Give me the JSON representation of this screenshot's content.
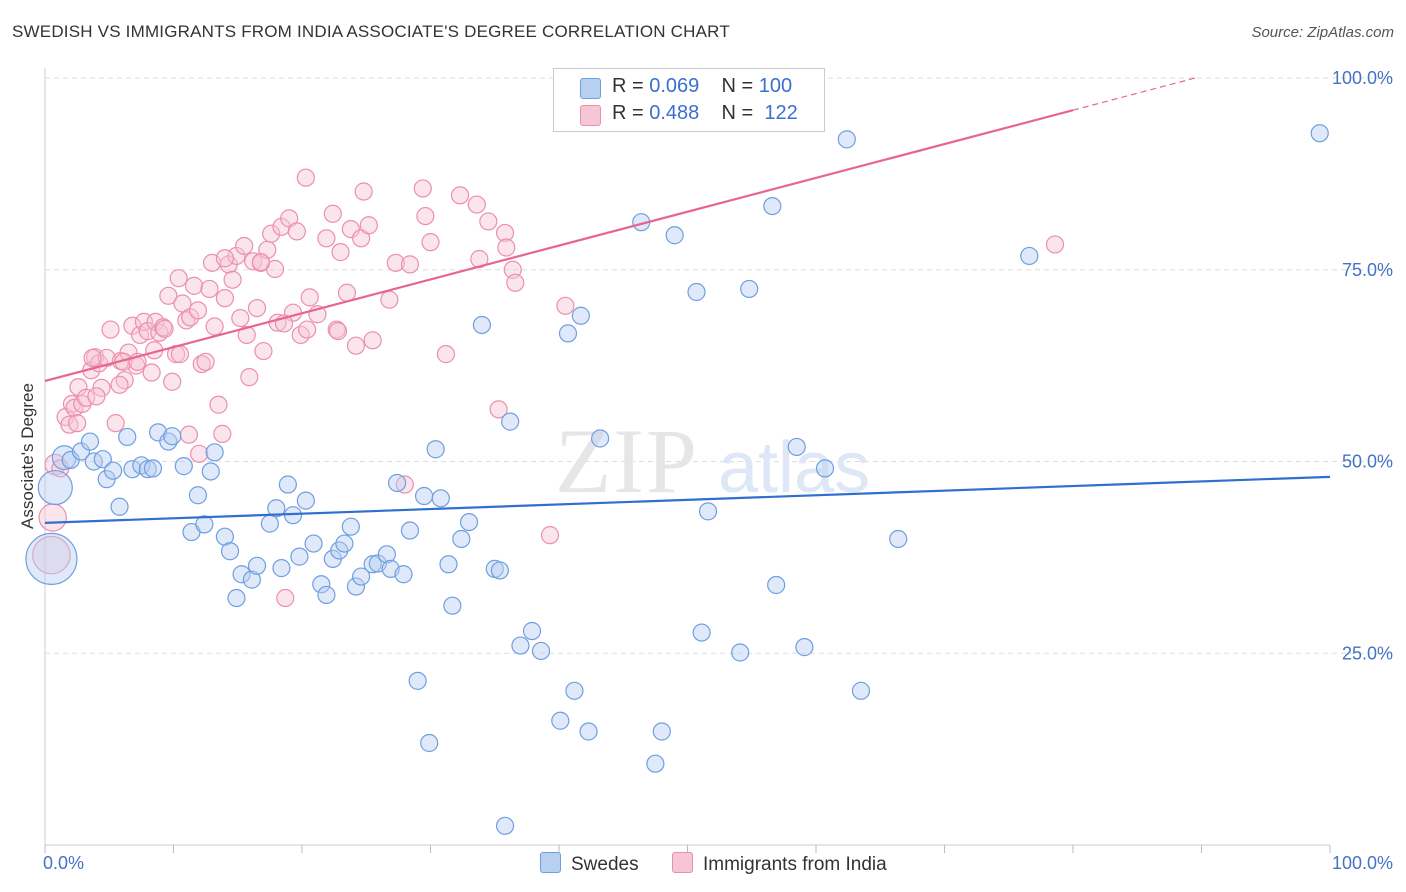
{
  "title": "SWEDISH VS IMMIGRANTS FROM INDIA ASSOCIATE'S DEGREE CORRELATION CHART",
  "source": "Source: ZipAtlas.com",
  "watermark": {
    "zip": "ZIP",
    "atlas": "atlas"
  },
  "colors": {
    "blue": "#6f9fe0",
    "blue_fill": "#b7cff1",
    "blue_line": "#2f6fce",
    "pink": "#ec8fad",
    "pink_fill": "#f6c6d5",
    "pink_line": "#e8658f",
    "grid": "#dddddd",
    "axis_text": "#4472c4"
  },
  "legend": {
    "rows": [
      {
        "r_label": "R = ",
        "r_value": "0.069",
        "n_label": "N = ",
        "n_value": "100",
        "color": "blue"
      },
      {
        "r_label": "R = ",
        "r_value": "0.488",
        "n_label": "N = ",
        "n_value": "122",
        "color": "pink"
      }
    ]
  },
  "bottom_legend": {
    "swedes": "Swedes",
    "india": "Immigrants from India"
  },
  "chart_data": {
    "type": "scatter",
    "title": "SWEDISH VS IMMIGRANTS FROM INDIA ASSOCIATE'S DEGREE CORRELATION CHART",
    "xlabel": "",
    "ylabel": "Associate's Degree",
    "xlim": [
      0,
      100
    ],
    "ylim": [
      0,
      100
    ],
    "x_tick_labels": [
      "0.0%",
      "100.0%"
    ],
    "y_tick_labels": [
      "25.0%",
      "50.0%",
      "75.0%",
      "100.0%"
    ],
    "y_ticks": [
      25,
      50,
      75,
      100
    ],
    "grid": true,
    "legend_position": "top-center",
    "series": [
      {
        "name": "Swedes",
        "color": "blue",
        "trend": {
          "x0": 0,
          "y0": 42.0,
          "x1": 100,
          "y1": 48.0
        },
        "points": [
          [
            0.5,
            37.3,
            3
          ],
          [
            0.8,
            46.6,
            2
          ],
          [
            1.5,
            50.5,
            1.4
          ],
          [
            2.0,
            50.2,
            1
          ],
          [
            2.8,
            51.3,
            1
          ],
          [
            3.5,
            52.6,
            1
          ],
          [
            3.8,
            50.0,
            1
          ],
          [
            4.5,
            50.3,
            1
          ],
          [
            4.8,
            47.7,
            1
          ],
          [
            5.3,
            48.8,
            1
          ],
          [
            5.8,
            44.1,
            1
          ],
          [
            6.4,
            53.2,
            1
          ],
          [
            6.8,
            49.0,
            1
          ],
          [
            7.5,
            49.5,
            1
          ],
          [
            8.0,
            49.0,
            1
          ],
          [
            8.4,
            49.1,
            1
          ],
          [
            8.8,
            53.8,
            1
          ],
          [
            9.6,
            52.6,
            1
          ],
          [
            9.9,
            53.3,
            1
          ],
          [
            10.8,
            49.4,
            1
          ],
          [
            11.4,
            40.8,
            1
          ],
          [
            11.9,
            45.6,
            1
          ],
          [
            12.4,
            41.8,
            1
          ],
          [
            12.9,
            48.7,
            1
          ],
          [
            13.2,
            51.2,
            1
          ],
          [
            14.0,
            40.2,
            1
          ],
          [
            14.4,
            38.3,
            1
          ],
          [
            14.9,
            32.2,
            1
          ],
          [
            15.3,
            35.3,
            1
          ],
          [
            16.1,
            34.6,
            1
          ],
          [
            16.5,
            36.4,
            1
          ],
          [
            17.5,
            41.9,
            1
          ],
          [
            18.0,
            43.9,
            1
          ],
          [
            18.4,
            36.1,
            1
          ],
          [
            18.9,
            47.0,
            1
          ],
          [
            19.3,
            43.0,
            1
          ],
          [
            19.8,
            37.6,
            1
          ],
          [
            20.3,
            44.9,
            1
          ],
          [
            20.9,
            39.3,
            1
          ],
          [
            21.5,
            34.0,
            1
          ],
          [
            21.9,
            32.6,
            1
          ],
          [
            22.4,
            37.3,
            1
          ],
          [
            22.9,
            38.4,
            1
          ],
          [
            23.3,
            39.3,
            1
          ],
          [
            23.8,
            41.5,
            1
          ],
          [
            24.2,
            33.7,
            1
          ],
          [
            24.6,
            35.0,
            1
          ],
          [
            25.5,
            36.6,
            1
          ],
          [
            25.9,
            36.7,
            1
          ],
          [
            26.6,
            37.9,
            1
          ],
          [
            26.9,
            36.0,
            1
          ],
          [
            27.4,
            47.2,
            1
          ],
          [
            27.9,
            35.3,
            1
          ],
          [
            28.4,
            41.0,
            1
          ],
          [
            29.0,
            21.4,
            1
          ],
          [
            29.5,
            45.5,
            1
          ],
          [
            29.9,
            13.3,
            1
          ],
          [
            30.4,
            51.6,
            1
          ],
          [
            30.8,
            45.2,
            1
          ],
          [
            31.4,
            36.6,
            1
          ],
          [
            31.7,
            31.2,
            1
          ],
          [
            32.4,
            39.9,
            1
          ],
          [
            33.0,
            42.1,
            1
          ],
          [
            34.0,
            67.8,
            1
          ],
          [
            35.0,
            36.0,
            1
          ],
          [
            35.4,
            35.8,
            1
          ],
          [
            35.8,
            2.5,
            1
          ],
          [
            36.2,
            55.2,
            1
          ],
          [
            37.0,
            26.0,
            1
          ],
          [
            37.9,
            27.9,
            1
          ],
          [
            38.6,
            25.3,
            1
          ],
          [
            40.1,
            16.2,
            1
          ],
          [
            41.2,
            20.1,
            1
          ],
          [
            41.7,
            69.0,
            1
          ],
          [
            42.3,
            14.8,
            1
          ],
          [
            43.2,
            53.0,
            1
          ],
          [
            46.4,
            81.2,
            1
          ],
          [
            47.5,
            10.6,
            1
          ],
          [
            48.0,
            14.8,
            1
          ],
          [
            49.0,
            79.5,
            1
          ],
          [
            50.7,
            72.1,
            1
          ],
          [
            51.1,
            27.7,
            1
          ],
          [
            51.6,
            43.5,
            1
          ],
          [
            54.1,
            25.1,
            1
          ],
          [
            54.8,
            72.5,
            1
          ],
          [
            56.9,
            33.9,
            1
          ],
          [
            56.6,
            83.3,
            1
          ],
          [
            58.5,
            51.9,
            1
          ],
          [
            59.1,
            25.8,
            1
          ],
          [
            60.7,
            49.1,
            1
          ],
          [
            62.4,
            92.0,
            1
          ],
          [
            63.5,
            20.1,
            1
          ],
          [
            66.4,
            39.9,
            1
          ],
          [
            76.6,
            76.8,
            1
          ],
          [
            99.2,
            92.8,
            1
          ],
          [
            40.7,
            66.7,
            1
          ],
          [
            53.0,
            59.0,
            0
          ],
          [
            45.0,
            44.0,
            0
          ],
          [
            30.0,
            60.0,
            0
          ],
          [
            33.0,
            58.0,
            0
          ]
        ]
      },
      {
        "name": "Immigrants from India",
        "color": "pink",
        "trend": {
          "x0": 0,
          "y0": 60.5,
          "x1": 80,
          "y1": 95.8,
          "dash_x1": 89.5,
          "dash_y1": 100
        },
        "points": [
          [
            0.5,
            37.8,
            2.2
          ],
          [
            0.6,
            42.7,
            1.6
          ],
          [
            0.8,
            49.6,
            1.2
          ],
          [
            1.2,
            49.1,
            1
          ],
          [
            1.6,
            55.8,
            1
          ],
          [
            1.9,
            54.8,
            1
          ],
          [
            2.1,
            57.5,
            1
          ],
          [
            2.3,
            57.0,
            1
          ],
          [
            2.6,
            59.7,
            1
          ],
          [
            2.9,
            57.5,
            1
          ],
          [
            3.2,
            58.3,
            1
          ],
          [
            3.6,
            61.9,
            1
          ],
          [
            3.9,
            63.6,
            1
          ],
          [
            4.2,
            62.8,
            1
          ],
          [
            4.4,
            59.6,
            1
          ],
          [
            4.8,
            63.5,
            1
          ],
          [
            5.1,
            67.2,
            1
          ],
          [
            5.5,
            55.0,
            1
          ],
          [
            5.9,
            63.1,
            1
          ],
          [
            6.2,
            60.6,
            1
          ],
          [
            6.5,
            64.2,
            1
          ],
          [
            6.8,
            67.7,
            1
          ],
          [
            7.1,
            62.5,
            1
          ],
          [
            7.4,
            66.5,
            1
          ],
          [
            7.7,
            68.2,
            1
          ],
          [
            8.0,
            67.0,
            1
          ],
          [
            8.3,
            61.6,
            1
          ],
          [
            8.6,
            68.2,
            1
          ],
          [
            8.9,
            66.8,
            1
          ],
          [
            9.2,
            67.5,
            1
          ],
          [
            9.6,
            71.6,
            1
          ],
          [
            9.9,
            60.4,
            1
          ],
          [
            10.2,
            64.0,
            1
          ],
          [
            10.4,
            73.9,
            1
          ],
          [
            10.7,
            70.6,
            1
          ],
          [
            11.0,
            68.4,
            1
          ],
          [
            11.3,
            68.8,
            1
          ],
          [
            11.6,
            72.9,
            1
          ],
          [
            11.9,
            69.7,
            1
          ],
          [
            12.2,
            62.7,
            1
          ],
          [
            12.5,
            63.0,
            1
          ],
          [
            12.8,
            72.5,
            1
          ],
          [
            13.0,
            75.9,
            1
          ],
          [
            13.2,
            67.6,
            1
          ],
          [
            13.5,
            57.4,
            1
          ],
          [
            13.8,
            53.6,
            1
          ],
          [
            14.0,
            71.3,
            1
          ],
          [
            14.3,
            75.7,
            1
          ],
          [
            14.6,
            73.7,
            1
          ],
          [
            14.9,
            76.8,
            1
          ],
          [
            15.2,
            68.7,
            1
          ],
          [
            15.5,
            78.1,
            1
          ],
          [
            15.7,
            66.5,
            1
          ],
          [
            15.9,
            61.0,
            1
          ],
          [
            16.2,
            76.1,
            1
          ],
          [
            16.5,
            70.0,
            1
          ],
          [
            16.8,
            75.9,
            1
          ],
          [
            17.0,
            64.4,
            1
          ],
          [
            17.3,
            77.6,
            1
          ],
          [
            17.6,
            79.7,
            1
          ],
          [
            17.9,
            75.1,
            1
          ],
          [
            18.1,
            68.1,
            1
          ],
          [
            18.4,
            80.6,
            1
          ],
          [
            18.7,
            32.2,
            1
          ],
          [
            19.0,
            81.7,
            1
          ],
          [
            19.3,
            69.4,
            1
          ],
          [
            19.6,
            80.0,
            1
          ],
          [
            19.9,
            66.5,
            1
          ],
          [
            20.3,
            87.0,
            1
          ],
          [
            20.6,
            71.4,
            1
          ],
          [
            21.2,
            69.2,
            1
          ],
          [
            22.4,
            82.3,
            1
          ],
          [
            22.7,
            67.2,
            1
          ],
          [
            23.0,
            77.3,
            1
          ],
          [
            23.5,
            72.0,
            1
          ],
          [
            23.8,
            80.3,
            1
          ],
          [
            24.2,
            65.1,
            1
          ],
          [
            24.6,
            79.1,
            1
          ],
          [
            24.8,
            85.2,
            1
          ],
          [
            25.2,
            80.8,
            1
          ],
          [
            25.5,
            65.8,
            1
          ],
          [
            26.8,
            71.1,
            1
          ],
          [
            27.3,
            75.9,
            1
          ],
          [
            28.0,
            47.0,
            1
          ],
          [
            28.4,
            75.7,
            1
          ],
          [
            29.4,
            85.6,
            1
          ],
          [
            29.6,
            82.0,
            1
          ],
          [
            30.0,
            78.6,
            1
          ],
          [
            31.2,
            64.0,
            1
          ],
          [
            32.3,
            84.7,
            1
          ],
          [
            33.8,
            76.4,
            1
          ],
          [
            33.6,
            83.5,
            1
          ],
          [
            34.5,
            81.3,
            1
          ],
          [
            35.8,
            79.8,
            1
          ],
          [
            35.9,
            77.9,
            1
          ],
          [
            35.3,
            56.8,
            1
          ],
          [
            36.4,
            75.0,
            1
          ],
          [
            36.6,
            73.3,
            1
          ],
          [
            39.3,
            40.4,
            1
          ],
          [
            40.5,
            70.3,
            1
          ],
          [
            78.6,
            78.3,
            1
          ],
          [
            8.5,
            64.5,
            1
          ],
          [
            5.8,
            60.0,
            1
          ],
          [
            9.3,
            67.3,
            1
          ],
          [
            12.0,
            51.0,
            1
          ],
          [
            6.1,
            63.0,
            1
          ],
          [
            3.7,
            63.5,
            1
          ],
          [
            18.6,
            68.0,
            1
          ],
          [
            20.4,
            67.2,
            1
          ],
          [
            14.0,
            76.5,
            1
          ],
          [
            21.9,
            79.1,
            1
          ],
          [
            11.2,
            53.5,
            1
          ],
          [
            7.2,
            63.0,
            1
          ],
          [
            4.0,
            58.5,
            1
          ],
          [
            2.5,
            55.0,
            1
          ],
          [
            10.5,
            64.0,
            1
          ],
          [
            16.8,
            76.0,
            1
          ],
          [
            22.8,
            67.0,
            1
          ],
          [
            26.0,
            55.0,
            0
          ],
          [
            24.0,
            62.0,
            0
          ],
          [
            30.0,
            55.0,
            0
          ],
          [
            37.0,
            70.0,
            0
          ]
        ]
      }
    ]
  }
}
